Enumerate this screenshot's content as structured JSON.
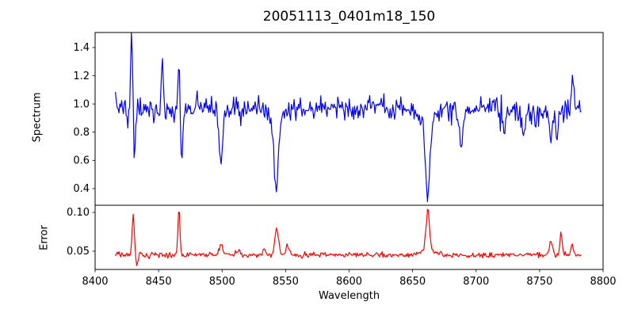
{
  "chart_data": {
    "type": "line",
    "title": "20051113_0401m18_150",
    "xlabel": "Wavelength",
    "background": "#ffffff",
    "axis_color": "#000000",
    "grid": false,
    "legend": "none",
    "x": {
      "lim": [
        8400,
        8800
      ],
      "tick_values": [
        8400,
        8450,
        8500,
        8550,
        8600,
        8650,
        8700,
        8750,
        8800
      ],
      "tick_labels": [
        "8400",
        "8450",
        "8500",
        "8550",
        "8600",
        "8650",
        "8700",
        "8750",
        "8800"
      ],
      "data_range": [
        8416,
        8783
      ],
      "step": 0.7
    },
    "panels": [
      {
        "name": "spectrum",
        "ylabel": "Spectrum",
        "color": "#0000ff",
        "ylim": [
          0.2815,
          1.5067
        ],
        "tick_values": [
          0.4,
          0.6,
          0.8,
          1.0,
          1.2,
          1.4
        ],
        "tick_labels": [
          "0.4",
          "0.6",
          "0.8",
          "1.0",
          "1.2",
          "1.4"
        ],
        "baseline": 0.975,
        "noise_sigma": 0.04,
        "seed": 7,
        "features": [
          {
            "center": 8426.0,
            "amp": -0.1,
            "sigma": 0.9
          },
          {
            "center": 8428.8,
            "amp": 0.5,
            "sigma": 0.9
          },
          {
            "center": 8431.0,
            "amp": -0.38,
            "sigma": 0.9
          },
          {
            "center": 8453.0,
            "amp": 0.32,
            "sigma": 0.8
          },
          {
            "center": 8455.0,
            "amp": -0.03,
            "sigma": 12
          },
          {
            "center": 8466.0,
            "amp": 0.33,
            "sigma": 0.8
          },
          {
            "center": 8468.2,
            "amp": -0.36,
            "sigma": 0.9
          },
          {
            "center": 8499.0,
            "amp": -0.41,
            "sigma": 1.3
          },
          {
            "center": 8514.0,
            "amp": -0.09,
            "sigma": 1.0
          },
          {
            "center": 8542.5,
            "amp": -0.5,
            "sigma": 1.5
          },
          {
            "center": 8542.5,
            "amp": -0.1,
            "sigma": 5.5
          },
          {
            "center": 8662.0,
            "amp": -0.54,
            "sigma": 1.6
          },
          {
            "center": 8662.0,
            "amp": -0.1,
            "sigma": 5.5
          },
          {
            "center": 8688.0,
            "amp": -0.22,
            "sigma": 1.6
          },
          {
            "center": 8722.0,
            "amp": -0.17,
            "sigma": 1.3
          },
          {
            "center": 8737.0,
            "amp": -0.16,
            "sigma": 1.4
          },
          {
            "center": 8745.0,
            "amp": -0.045,
            "sigma": 10
          },
          {
            "center": 8759.0,
            "amp": -0.22,
            "sigma": 1.1
          },
          {
            "center": 8764.0,
            "amp": -0.18,
            "sigma": 0.9
          },
          {
            "center": 8776.0,
            "amp": 0.23,
            "sigma": 0.9
          }
        ]
      },
      {
        "name": "error",
        "ylabel": "Error",
        "color": "#ff0000",
        "ylim": [
          0.0265,
          0.1092
        ],
        "tick_values": [
          0.05,
          0.1
        ],
        "tick_labels": [
          "0.05",
          "0.10"
        ],
        "baseline": 0.045,
        "noise_sigma": 0.0017,
        "seed": 13,
        "features": [
          {
            "center": 8430.0,
            "amp": 0.054,
            "sigma": 0.9
          },
          {
            "center": 8432.8,
            "amp": -0.013,
            "sigma": 0.9
          },
          {
            "center": 8466.0,
            "amp": 0.061,
            "sigma": 0.8
          },
          {
            "center": 8499.0,
            "amp": 0.013,
            "sigma": 1.3
          },
          {
            "center": 8513.0,
            "amp": 0.008,
            "sigma": 1.2
          },
          {
            "center": 8533.0,
            "amp": 0.007,
            "sigma": 1.2
          },
          {
            "center": 8543.0,
            "amp": 0.034,
            "sigma": 1.4
          },
          {
            "center": 8551.5,
            "amp": 0.013,
            "sigma": 1.3
          },
          {
            "center": 8662.0,
            "amp": 0.052,
            "sigma": 1.3
          },
          {
            "center": 8662.0,
            "amp": 0.007,
            "sigma": 5.0
          },
          {
            "center": 8759.0,
            "amp": 0.017,
            "sigma": 1.1
          },
          {
            "center": 8767.0,
            "amp": 0.029,
            "sigma": 0.9
          },
          {
            "center": 8775.5,
            "amp": 0.013,
            "sigma": 0.9
          }
        ]
      }
    ]
  }
}
